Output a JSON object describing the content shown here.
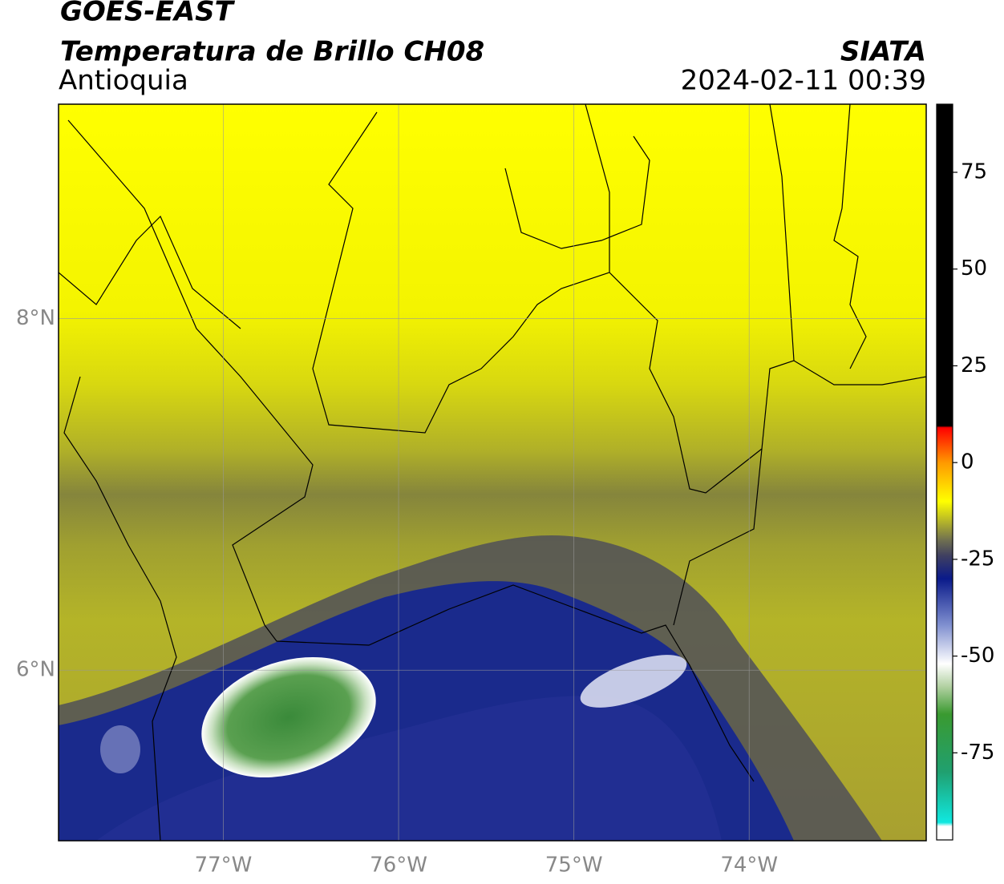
{
  "chart_data": {
    "type": "map",
    "title": "GOES-EAST",
    "subtitle": "Temperatura de Brillo CH08",
    "region": "Antioquia",
    "source": "SIATA",
    "timestamp": "2024-02-11 00:39",
    "xlim": [
      -77.94,
      -72.99
    ],
    "ylim": [
      5.03,
      9.22
    ],
    "xticks": [
      {
        "value": -77,
        "label": "77°W"
      },
      {
        "value": -76,
        "label": "76°W"
      },
      {
        "value": -75,
        "label": "75°W"
      },
      {
        "value": -74,
        "label": "74°W"
      }
    ],
    "yticks": [
      {
        "value": 8,
        "label": "8°N"
      },
      {
        "value": 6,
        "label": "6°N"
      }
    ],
    "grid": true,
    "colorbar": {
      "lim": [
        -97.5,
        92.6
      ],
      "ticks": [
        75,
        50,
        25,
        0,
        -25,
        -50,
        -75
      ],
      "colormap": [
        {
          "value": -97.5,
          "color": "#ffffff"
        },
        {
          "value": -94,
          "color": "#ffffff"
        },
        {
          "value": -93,
          "color": "#10e8e0"
        },
        {
          "value": -80,
          "color": "#20a070"
        },
        {
          "value": -65,
          "color": "#3a9a30"
        },
        {
          "value": -58,
          "color": "#b0d0a0"
        },
        {
          "value": -52,
          "color": "#ffffff"
        },
        {
          "value": -42,
          "color": "#8090d0"
        },
        {
          "value": -30,
          "color": "#0a1a8a"
        },
        {
          "value": -24,
          "color": "#404060"
        },
        {
          "value": -20,
          "color": "#707050"
        },
        {
          "value": -10,
          "color": "#ffff00"
        },
        {
          "value": 0,
          "color": "#ff9900"
        },
        {
          "value": 9,
          "color": "#ff0000"
        },
        {
          "value": 9.5,
          "color": "#000000"
        },
        {
          "value": 92.6,
          "color": "#000000"
        }
      ]
    }
  }
}
